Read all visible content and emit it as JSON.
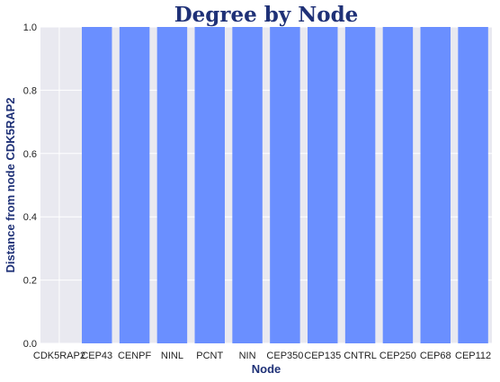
{
  "chart_data": {
    "type": "bar",
    "title": "Degree by Node",
    "xlabel": "Node",
    "ylabel": "Distance from node CDK5RAP2",
    "categories": [
      "CDK5RAP2",
      "CEP43",
      "CENPF",
      "NINL",
      "PCNT",
      "NIN",
      "CEP350",
      "CEP135",
      "CNTRL",
      "CEP250",
      "CEP68",
      "CEP112"
    ],
    "values": [
      0,
      1,
      1,
      1,
      1,
      1,
      1,
      1,
      1,
      1,
      1,
      1
    ],
    "ylim": [
      0,
      1.0
    ],
    "yticks": [
      "0.0",
      "0.2",
      "0.4",
      "0.6",
      "0.8",
      "1.0"
    ],
    "grid": true,
    "colors": {
      "bar": "#6a8fff",
      "background": "#e9e9f0",
      "grid": "#ffffff",
      "title": "#1f3177",
      "axis_label": "#1f3177"
    }
  }
}
